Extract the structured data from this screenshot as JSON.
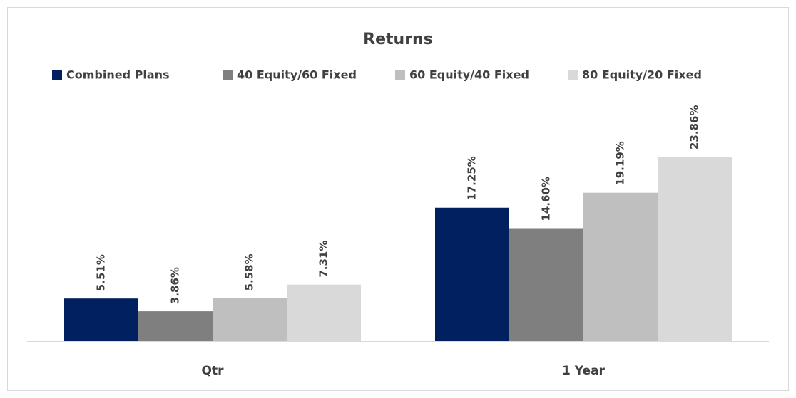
{
  "chart_data": {
    "type": "bar",
    "title": "Returns",
    "categories": [
      "Qtr",
      "1 Year"
    ],
    "series": [
      {
        "name": "Combined Plans",
        "color": "#002060",
        "values": [
          5.51,
          17.25
        ],
        "value_labels": [
          "5.51%",
          "17.25%"
        ]
      },
      {
        "name": "40 Equity/60 Fixed",
        "color": "#7f7f7f",
        "values": [
          3.86,
          14.6
        ],
        "value_labels": [
          "3.86%",
          "14.60%"
        ]
      },
      {
        "name": "60 Equity/40 Fixed",
        "color": "#bfbfbf",
        "values": [
          5.58,
          19.19
        ],
        "value_labels": [
          "5.58%",
          "19.19%"
        ]
      },
      {
        "name": "80 Equity/20 Fixed",
        "color": "#d9d9d9",
        "values": [
          7.31,
          23.86
        ],
        "value_labels": [
          "7.31%",
          "23.86%"
        ]
      }
    ],
    "legend": "top"
  }
}
